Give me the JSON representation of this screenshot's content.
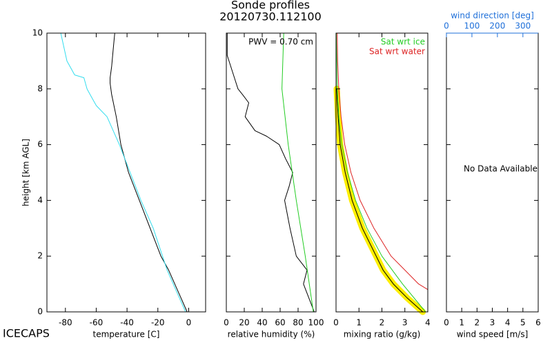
{
  "title": "Sonde profiles",
  "subtitle": "20120730.112100",
  "logo": "ICECAPS",
  "chart_data": [
    {
      "type": "line",
      "xlabel": "temperature [C]",
      "ylabel": "height [km AGL]",
      "xlim": [
        -92,
        11
      ],
      "xticks": [
        -80,
        -60,
        -40,
        -20,
        0
      ],
      "ylim": [
        0,
        10
      ],
      "yticks": [
        0,
        2,
        4,
        6,
        8,
        10
      ],
      "series": [
        {
          "color": "#000000",
          "x": [
            -1,
            -5,
            -9,
            -13,
            -18,
            -25,
            -32,
            -39,
            -44,
            -47,
            -50,
            -51,
            -51,
            -50,
            -49,
            -48
          ],
          "y": [
            0,
            0.5,
            1,
            1.5,
            2,
            3,
            4,
            5,
            6,
            7,
            7.8,
            8.2,
            8.4,
            8.8,
            9.4,
            10
          ]
        },
        {
          "color": "#33ddee",
          "x": [
            -2,
            -6,
            -10,
            -14,
            -17,
            -23,
            -31,
            -38,
            -45,
            -53,
            -60,
            -64,
            -66,
            -68,
            -74,
            -75,
            -79,
            -83
          ],
          "y": [
            0,
            0.5,
            1,
            1.5,
            2,
            3,
            4,
            5,
            6,
            7,
            7.4,
            7.8,
            8,
            8.4,
            8.5,
            8.6,
            9,
            10
          ]
        }
      ]
    },
    {
      "type": "line",
      "xlabel": "relative humidity (%)",
      "annotation": "PWV = 0.70 cm",
      "xlim": [
        0,
        100
      ],
      "xticks": [
        0,
        20,
        40,
        60,
        80,
        100
      ],
      "ylim": [
        0,
        10
      ],
      "yticks": [
        0,
        2,
        4,
        6,
        8,
        10
      ],
      "series": [
        {
          "color": "#000000",
          "x": [
            98,
            86,
            90,
            78,
            71,
            65,
            70,
            74,
            66,
            59,
            45,
            32,
            21,
            25,
            18,
            13,
            8,
            3,
            1,
            1
          ],
          "y": [
            0,
            1,
            1.5,
            2,
            3,
            4,
            4.5,
            5,
            5.5,
            6,
            6.3,
            6.5,
            7,
            7.5,
            7.8,
            8,
            8.5,
            9,
            9.2,
            10
          ]
        },
        {
          "color": "#22cc22",
          "x": [
            97,
            88,
            78,
            69,
            62,
            64
          ],
          "y": [
            0,
            2,
            4,
            6,
            8,
            10
          ]
        }
      ]
    },
    {
      "type": "line",
      "xlabel": "mixing ratio (g/kg)",
      "xlim": [
        0,
        4
      ],
      "xticks": [
        0,
        1,
        2,
        3,
        4
      ],
      "ylim": [
        0,
        10
      ],
      "yticks": [
        0,
        2,
        4,
        6,
        8,
        10
      ],
      "series": [
        {
          "color": "#ffee00",
          "width": 9,
          "x": [
            3.78,
            3.1,
            2.5,
            2.05,
            1.75,
            1.15,
            0.7,
            0.4,
            0.18,
            0.09,
            0.03
          ],
          "y": [
            0,
            0.5,
            1,
            1.5,
            2,
            3,
            4,
            5,
            6,
            7,
            8
          ]
        },
        {
          "color": "#000000",
          "x": [
            3.78,
            3.1,
            2.5,
            2.05,
            1.75,
            1.15,
            0.7,
            0.4,
            0.18,
            0.09,
            0.03
          ],
          "y": [
            0,
            0.5,
            1,
            1.5,
            2,
            3,
            4,
            5,
            6,
            7,
            8
          ]
        },
        {
          "name": "Sat wrt ice",
          "color": "#22cc22",
          "x": [
            3.9,
            2.9,
            2.0,
            1.35,
            0.85,
            0.5,
            0.25,
            0.12,
            0.05,
            0.01
          ],
          "y": [
            0,
            1,
            2,
            3,
            4,
            5,
            6,
            7,
            8,
            10
          ]
        },
        {
          "name": "Sat wrt water",
          "color": "#dd2222",
          "x": [
            4.0,
            3.6,
            2.4,
            1.65,
            1.05,
            0.65,
            0.38,
            0.22,
            0.12,
            0.07,
            0.05
          ],
          "y": [
            0.8,
            1,
            2,
            3,
            4,
            5,
            6,
            7,
            8,
            9,
            10
          ]
        }
      ]
    },
    {
      "type": "line",
      "xlabel": "wind speed [m/s]",
      "annotation": "No Data Available",
      "xlim": [
        0,
        6
      ],
      "xticks": [
        0,
        1,
        2,
        3,
        4,
        5,
        6
      ],
      "x2label": "wind direction [deg]",
      "x2lim": [
        0,
        360
      ],
      "x2ticks": [
        0,
        100,
        200,
        300
      ],
      "x2color": "#1e6fd9",
      "ylim": [
        0,
        10
      ],
      "yticks": [
        0,
        2,
        4,
        6,
        8,
        10
      ],
      "series": []
    }
  ]
}
